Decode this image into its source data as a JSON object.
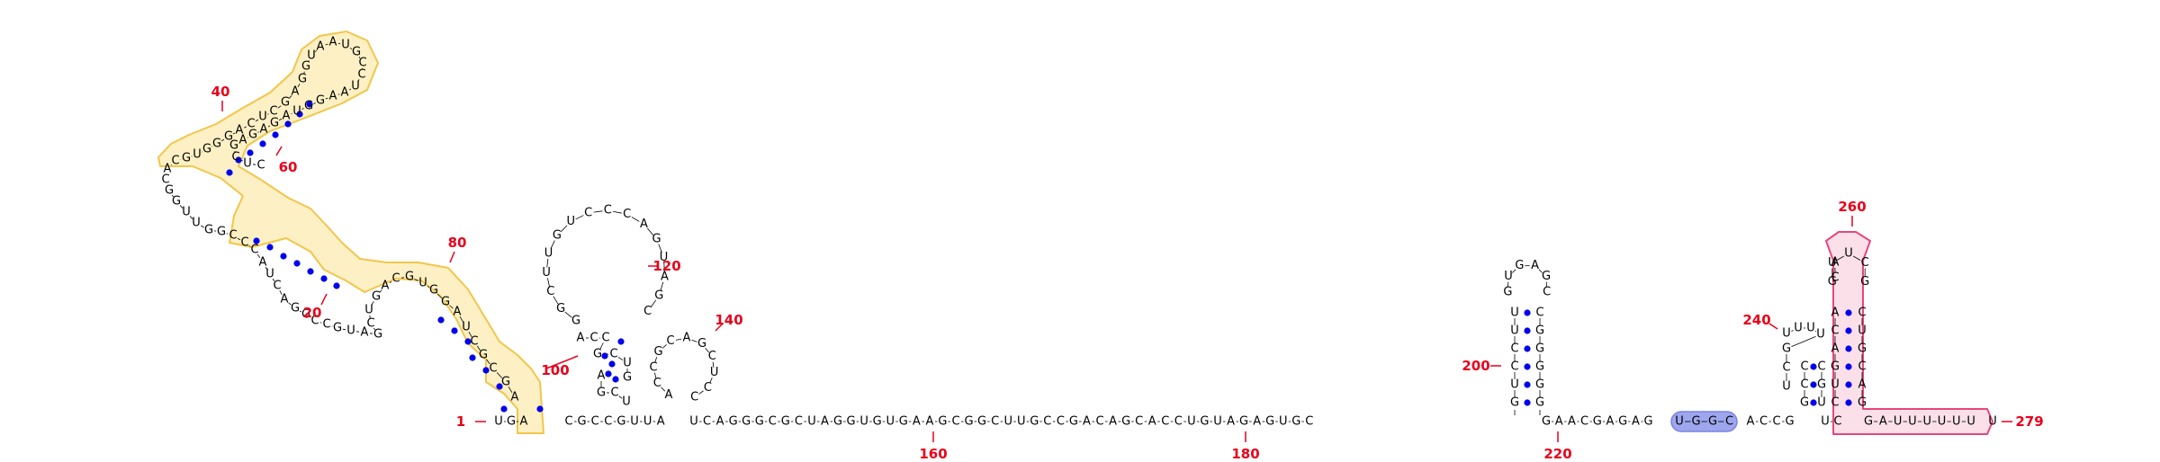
{
  "title": "RNA secondary structure diagram",
  "colors": {
    "base_pair": "#0000ee",
    "position_label": "#e8001c",
    "highlight_yellow": "#f2c64a",
    "highlight_pink": "#e8467c",
    "highlight_blue": "#7a83e0"
  },
  "sequence_5prime_tail": "UGA",
  "backbone_3prime_run": [
    "C",
    "G",
    "C",
    "C",
    "G",
    "U",
    "U",
    "A",
    "U",
    "C",
    "A",
    "G",
    "G",
    "G",
    "C",
    "G",
    "C",
    "U",
    "A",
    "G",
    "G",
    "U",
    "G",
    "U",
    "G",
    "A",
    "A",
    "G",
    "C",
    "G",
    "G",
    "C",
    "U",
    "U",
    "G",
    "C",
    "C",
    "G",
    "A",
    "C",
    "A",
    "G",
    "C",
    "A",
    "C",
    "C",
    "U",
    "G",
    "U",
    "A",
    "G",
    "A",
    "G",
    "U",
    "G",
    "C"
  ],
  "linker_220": [
    "G",
    "A",
    "A",
    "C",
    "G",
    "A",
    "G",
    "A",
    "G"
  ],
  "blue_block": [
    "U",
    "G",
    "G",
    "C"
  ],
  "linker_after_blue": [
    "A",
    "C",
    "C",
    "G"
  ],
  "tail_3prime": [
    "G",
    "A",
    "U",
    "U",
    "U",
    "U",
    "U",
    "U"
  ],
  "hairpin_200": {
    "stem_left": [
      "G",
      "U",
      "C",
      "C",
      "U",
      "U"
    ],
    "stem_right": [
      "G",
      "G",
      "G",
      "G",
      "G",
      "C"
    ],
    "loop": [
      "G",
      "U",
      "G",
      "A",
      "G",
      "C"
    ]
  },
  "hairpin_240": {
    "left_run": [
      "U",
      "U",
      "U",
      "U",
      "G",
      "C",
      "U"
    ],
    "stem_left": [
      "C",
      "U",
      "G",
      "A",
      "C",
      "A"
    ],
    "stem_right": [
      "G",
      "A",
      "C",
      "G",
      "U",
      "C"
    ],
    "loop": [
      "G",
      "U",
      "U",
      "C",
      "G"
    ]
  },
  "hairpin_140": [
    "A",
    "C",
    "C",
    "G",
    "C",
    "A",
    "G",
    "C",
    "U",
    "C",
    "C"
  ],
  "big_loop_120": [
    "G",
    "G",
    "C",
    "U",
    "U",
    "G",
    "U",
    "C",
    "C",
    "C",
    "A",
    "G",
    "U",
    "A",
    "G",
    "C"
  ],
  "upper_domain": [
    "A",
    "G",
    "C",
    "G",
    "C",
    "U",
    "A",
    "G",
    "G",
    "U",
    "G",
    "C",
    "A",
    "G",
    "U",
    "C",
    "G",
    "A",
    "U",
    "G",
    "C",
    "C",
    "G",
    "G",
    "A",
    "C",
    "U",
    "A",
    "C",
    "C",
    "C",
    "G",
    "G",
    "U",
    "U",
    "G",
    "G",
    "C",
    "A",
    "C",
    "G",
    "U",
    "G",
    "G",
    "G",
    "A",
    "C",
    "U",
    "C",
    "G",
    "A",
    "G",
    "G",
    "U",
    "A",
    "A",
    "U",
    "G",
    "C",
    "C",
    "U",
    "A",
    "A",
    "G",
    "G",
    "U",
    "A",
    "G",
    "A",
    "G",
    "A",
    "G",
    "C",
    "U",
    "C"
  ],
  "numbering": [
    {
      "label": "1",
      "pos": 1
    },
    {
      "label": "20",
      "pos": 20
    },
    {
      "label": "40",
      "pos": 40
    },
    {
      "label": "60",
      "pos": 60
    },
    {
      "label": "80",
      "pos": 80
    },
    {
      "label": "100",
      "pos": 100
    },
    {
      "label": "120",
      "pos": 120
    },
    {
      "label": "140",
      "pos": 140
    },
    {
      "label": "160",
      "pos": 160
    },
    {
      "label": "180",
      "pos": 180
    },
    {
      "label": "200",
      "pos": 200
    },
    {
      "label": "220",
      "pos": 220
    },
    {
      "label": "240",
      "pos": 240
    },
    {
      "label": "260",
      "pos": 260
    },
    {
      "label": "279",
      "pos": 279
    }
  ]
}
